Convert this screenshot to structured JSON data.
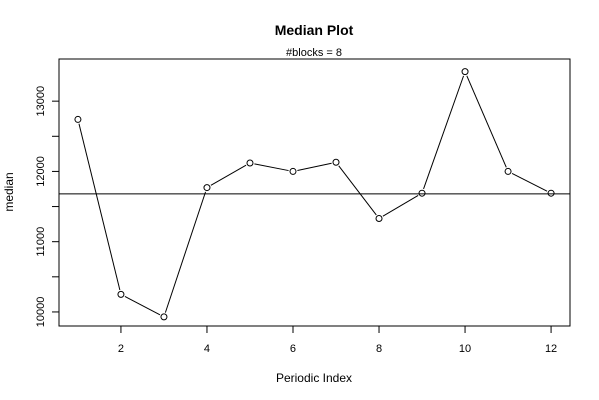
{
  "chart_data": {
    "type": "line",
    "title": "Median Plot",
    "subtitle": "#blocks =  8",
    "xlabel": "Periodic Index",
    "ylabel": "median",
    "xlim": [
      0.56,
      12.44
    ],
    "ylim": [
      9800,
      13600
    ],
    "x_ticks": [
      2,
      4,
      6,
      8,
      10,
      12
    ],
    "y_ticks": [
      10000,
      11000,
      12000,
      13000
    ],
    "y_minor_ticks": [
      10500,
      11500,
      12500
    ],
    "x": [
      1,
      2,
      3,
      4,
      5,
      6,
      7,
      8,
      9,
      10,
      11,
      12
    ],
    "series": [
      {
        "values": [
          12740,
          10250,
          9930,
          11770,
          12120,
          12000,
          12130,
          11330,
          11690,
          13420,
          12000,
          11690
        ]
      }
    ],
    "reference_line": 11680,
    "grid": false,
    "colors": {
      "line": "#000000",
      "axes": "#000000",
      "background": "#ffffff"
    }
  }
}
